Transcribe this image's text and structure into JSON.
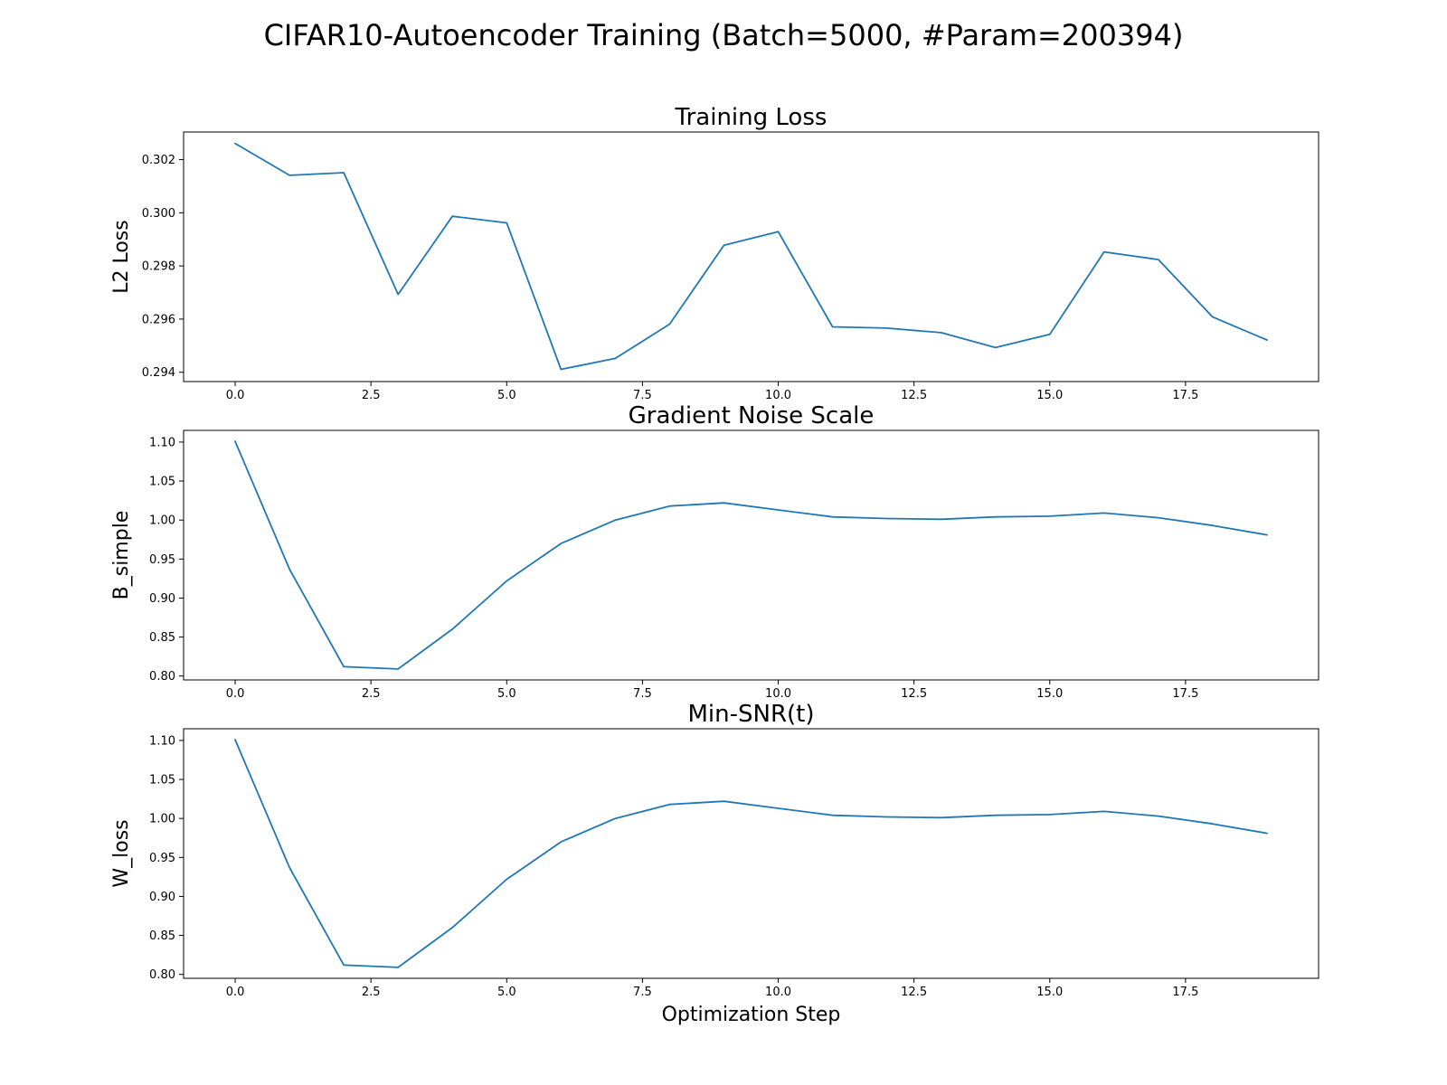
{
  "figure": {
    "title": "CIFAR10-Autoencoder Training (Batch=5000, #Param=200394)"
  },
  "colors": {
    "series": "#1f77b4",
    "axes": "#000000",
    "background": "#ffffff"
  },
  "chart_data": [
    {
      "type": "line",
      "title": "Training Loss",
      "xlabel": "",
      "ylabel": "L2 Loss",
      "xlim": [
        -0.95,
        19.95
      ],
      "ylim": [
        0.29365,
        0.30304
      ],
      "xticks": [
        0.0,
        2.5,
        5.0,
        7.5,
        10.0,
        12.5,
        15.0,
        17.5
      ],
      "xtick_labels": [
        "0.0",
        "2.5",
        "5.0",
        "7.5",
        "10.0",
        "12.5",
        "15.0",
        "17.5"
      ],
      "yticks": [
        0.294,
        0.296,
        0.298,
        0.3,
        0.302
      ],
      "ytick_labels": [
        "0.294",
        "0.296",
        "0.298",
        "0.300",
        "0.302"
      ],
      "grid": false,
      "x": [
        0,
        1,
        2,
        3,
        4,
        5,
        6,
        7,
        8,
        9,
        10,
        11,
        12,
        13,
        14,
        15,
        16,
        17,
        18,
        19
      ],
      "series": [
        {
          "values": [
            0.30261,
            0.30141,
            0.30151,
            0.29693,
            0.29987,
            0.29962,
            0.29411,
            0.29452,
            0.29581,
            0.29878,
            0.29929,
            0.29571,
            0.29566,
            0.29549,
            0.29493,
            0.29543,
            0.29853,
            0.29824,
            0.29608,
            0.29521
          ]
        }
      ]
    },
    {
      "type": "line",
      "title": "Gradient Noise Scale",
      "xlabel": "",
      "ylabel": "B_simple",
      "xlim": [
        -0.95,
        19.95
      ],
      "ylim": [
        0.795,
        1.115
      ],
      "xticks": [
        0.0,
        2.5,
        5.0,
        7.5,
        10.0,
        12.5,
        15.0,
        17.5
      ],
      "xtick_labels": [
        "0.0",
        "2.5",
        "5.0",
        "7.5",
        "10.0",
        "12.5",
        "15.0",
        "17.5"
      ],
      "yticks": [
        0.8,
        0.85,
        0.9,
        0.95,
        1.0,
        1.05,
        1.1
      ],
      "ytick_labels": [
        "0.80",
        "0.85",
        "0.90",
        "0.95",
        "1.00",
        "1.05",
        "1.10"
      ],
      "grid": false,
      "x": [
        0,
        1,
        2,
        3,
        4,
        5,
        6,
        7,
        8,
        9,
        10,
        11,
        12,
        13,
        14,
        15,
        16,
        17,
        18,
        19
      ],
      "series": [
        {
          "values": [
            1.101,
            0.937,
            0.812,
            0.809,
            0.86,
            0.922,
            0.97,
            1.0,
            1.018,
            1.022,
            1.013,
            1.004,
            1.002,
            1.001,
            1.004,
            1.005,
            1.009,
            1.003,
            0.993,
            0.981
          ]
        }
      ]
    },
    {
      "type": "line",
      "title": "Min-SNR(t)",
      "xlabel": "Optimization Step",
      "ylabel": "W_loss",
      "xlim": [
        -0.95,
        19.95
      ],
      "ylim": [
        0.795,
        1.115
      ],
      "xticks": [
        0.0,
        2.5,
        5.0,
        7.5,
        10.0,
        12.5,
        15.0,
        17.5
      ],
      "xtick_labels": [
        "0.0",
        "2.5",
        "5.0",
        "7.5",
        "10.0",
        "12.5",
        "15.0",
        "17.5"
      ],
      "yticks": [
        0.8,
        0.85,
        0.9,
        0.95,
        1.0,
        1.05,
        1.1
      ],
      "ytick_labels": [
        "0.80",
        "0.85",
        "0.90",
        "0.95",
        "1.00",
        "1.05",
        "1.10"
      ],
      "grid": false,
      "x": [
        0,
        1,
        2,
        3,
        4,
        5,
        6,
        7,
        8,
        9,
        10,
        11,
        12,
        13,
        14,
        15,
        16,
        17,
        18,
        19
      ],
      "series": [
        {
          "values": [
            1.101,
            0.937,
            0.812,
            0.809,
            0.86,
            0.922,
            0.97,
            1.0,
            1.018,
            1.022,
            1.013,
            1.004,
            1.002,
            1.001,
            1.004,
            1.005,
            1.009,
            1.003,
            0.993,
            0.981
          ]
        }
      ]
    }
  ]
}
